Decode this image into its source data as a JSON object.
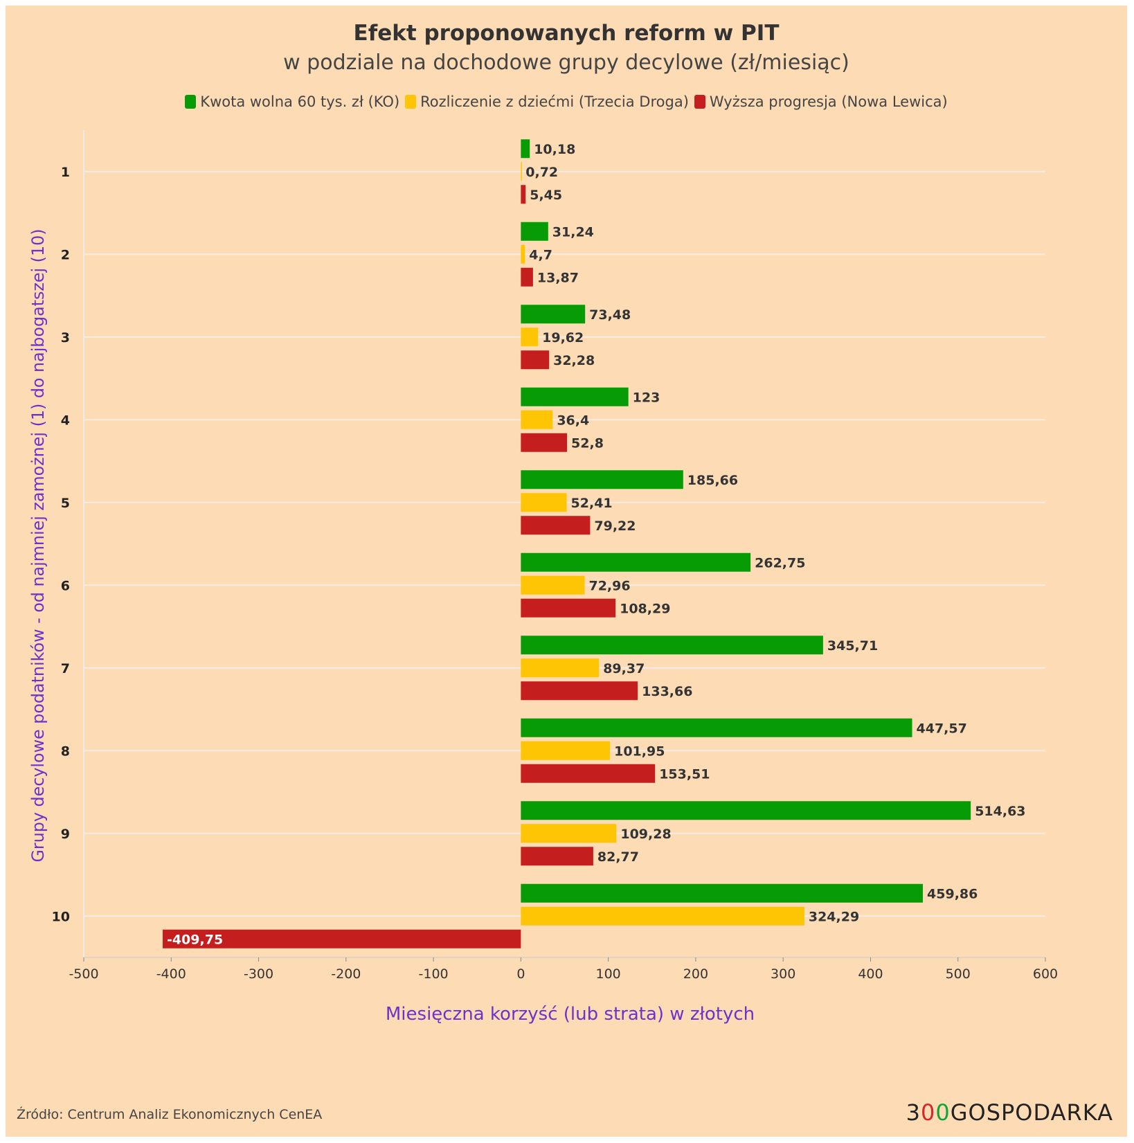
{
  "title": "Efekt proponowanych reform w PIT",
  "subtitle": "w podziale na dochodowe grupy decylowe (zł/miesiąc)",
  "source": "Źródło: Centrum Analiz Ekonomicznych CenEA",
  "logo": {
    "digit": "3",
    "zero1": "0",
    "zero2": "0",
    "word": "GOSPODARKA"
  },
  "colors": {
    "background": "#fddcb5",
    "green": "#079c05",
    "yellow": "#fdc503",
    "red": "#c41e1e",
    "axis_title": "#6a33c9",
    "grid": "#f4ece4"
  },
  "chart_data": {
    "type": "bar",
    "orientation": "horizontal",
    "title": "Efekt proponowanych reform w PIT",
    "subtitle": "w podziale na dochodowe grupy decylowe (zł/miesiąc)",
    "xlabel": "Miesięczna korzyść (lub strata) w złotych",
    "ylabel": "Grupy decylowe podatników - od najmniej zamożnej (1) do najbogatszej (10)",
    "xlim": [
      -500,
      600
    ],
    "xticks": [
      -500,
      -400,
      -300,
      -200,
      -100,
      0,
      100,
      200,
      300,
      400,
      500,
      600
    ],
    "categories": [
      "1",
      "2",
      "3",
      "4",
      "5",
      "6",
      "7",
      "8",
      "9",
      "10"
    ],
    "legend_position": "top",
    "grid": true,
    "series": [
      {
        "name": "Kwota wolna 60 tys. zł (KO)",
        "color": "#079c05",
        "values": [
          10.18,
          31.24,
          73.48,
          123,
          185.66,
          262.75,
          345.71,
          447.57,
          514.63,
          459.86
        ],
        "labels": [
          "10,18",
          "31,24",
          "73,48",
          "123",
          "185,66",
          "262,75",
          "345,71",
          "447,57",
          "514,63",
          "459,86"
        ]
      },
      {
        "name": "Rozliczenie z dziećmi (Trzecia Droga)",
        "color": "#fdc503",
        "values": [
          0.72,
          4.7,
          19.62,
          36.4,
          52.41,
          72.96,
          89.37,
          101.95,
          109.28,
          324.29
        ],
        "labels": [
          "0,72",
          "4,7",
          "19,62",
          "36,4",
          "52,41",
          "72,96",
          "89,37",
          "101,95",
          "109,28",
          "324,29"
        ]
      },
      {
        "name": "Wyższa progresja (Nowa Lewica)",
        "color": "#c41e1e",
        "values": [
          5.45,
          13.87,
          32.28,
          52.8,
          79.22,
          108.29,
          133.66,
          153.51,
          82.77,
          -409.75
        ],
        "labels": [
          "5,45",
          "13,87",
          "32,28",
          "52,8",
          "79,22",
          "108,29",
          "133,66",
          "153,51",
          "82,77",
          "-409,75"
        ]
      }
    ]
  }
}
